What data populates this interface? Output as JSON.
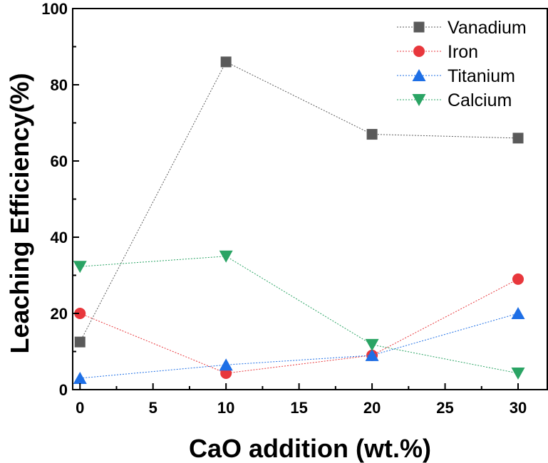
{
  "chart_data": {
    "type": "line",
    "title": "",
    "xlabel": "CaO addition (wt.%)",
    "ylabel": "Leaching Efficiency(%)",
    "xlim": [
      -0.5,
      32
    ],
    "ylim": [
      0,
      100
    ],
    "xticks": [
      0,
      5,
      10,
      15,
      20,
      25,
      30
    ],
    "yticks": [
      0,
      20,
      40,
      60,
      80,
      100
    ],
    "xtick_labels": [
      "0",
      "5",
      "10",
      "15",
      "20",
      "25",
      "30"
    ],
    "ytick_labels": [
      "0",
      "20",
      "40",
      "60",
      "80",
      "100"
    ],
    "x": [
      0,
      10,
      20,
      30
    ],
    "grid": false,
    "legend_position": "top-right",
    "series": [
      {
        "name": "Vanadium",
        "values": [
          12.5,
          86,
          67,
          66
        ],
        "color": "#5a5a5a",
        "marker": "square"
      },
      {
        "name": "Iron",
        "values": [
          20,
          4.3,
          9,
          29
        ],
        "color": "#e8373c",
        "marker": "circle"
      },
      {
        "name": "Titanium",
        "values": [
          3,
          6.5,
          9,
          20
        ],
        "color": "#1e6fe6",
        "marker": "triangle-up"
      },
      {
        "name": "Calcium",
        "values": [
          32.3,
          35,
          11.8,
          4.3
        ],
        "color": "#2aa464",
        "marker": "triangle-down"
      }
    ]
  }
}
